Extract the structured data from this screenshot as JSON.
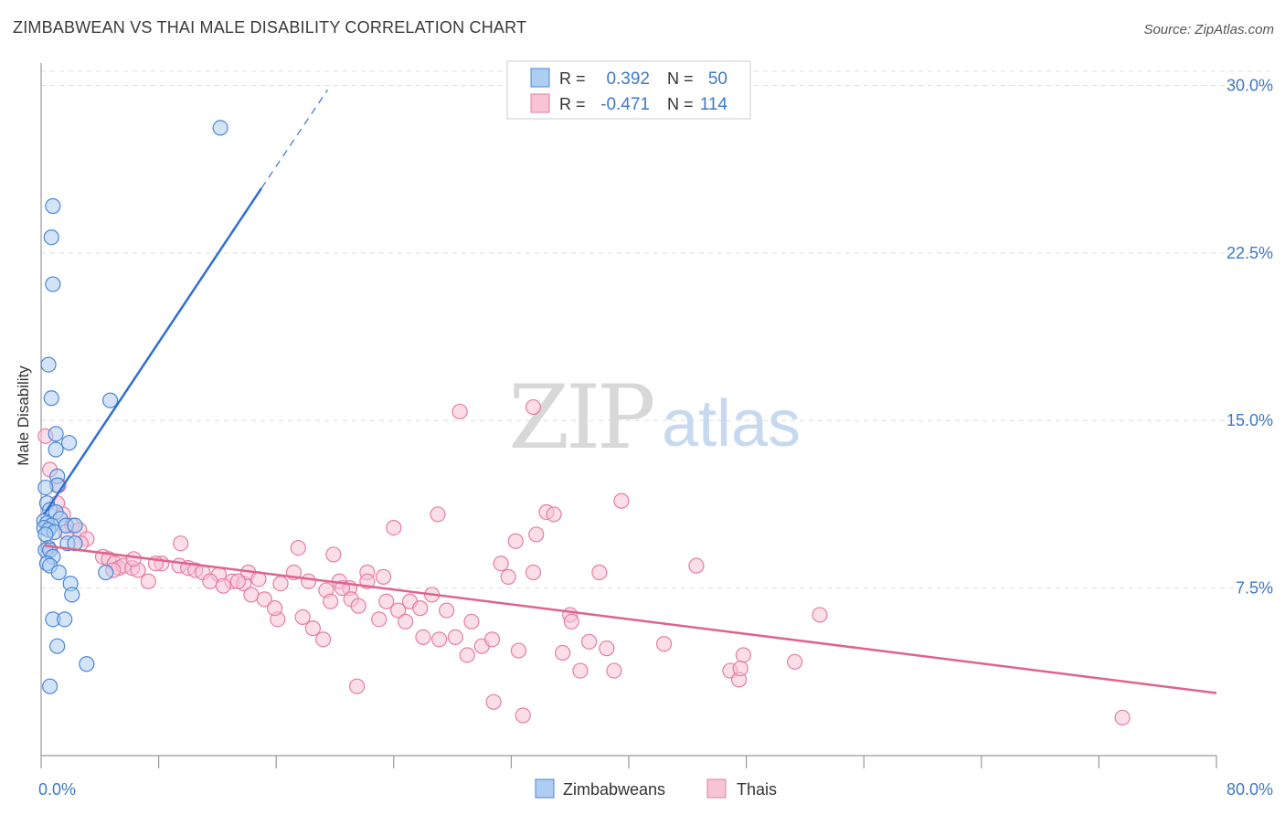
{
  "header": {
    "title": "ZIMBABWEAN VS THAI MALE DISABILITY CORRELATION CHART",
    "source": "Source: ZipAtlas.com"
  },
  "watermark": {
    "zip": "ZIP",
    "atlas": "atlas"
  },
  "colors": {
    "blue": "#4a86d4",
    "blue_fill": "#aecdf3",
    "blue_line": "#2f6fd0",
    "pink": "#e37ea3",
    "pink_fill": "#f7c3d5",
    "pink_line": "#e0628f",
    "tick_text": "#3f78c8",
    "grid": "#dddddd"
  },
  "legend_top": {
    "rows": [
      {
        "series": "Zimbabweans",
        "r_label": "R =",
        "r_value": "0.392",
        "n_label": "N =",
        "n_value": "50"
      },
      {
        "series": "Thais",
        "r_label": "R =",
        "r_value": "-0.471",
        "n_label": "N =",
        "n_value": "114"
      }
    ]
  },
  "legend_bottom": {
    "items": [
      "Zimbabweans",
      "Thais"
    ]
  },
  "chart_data": {
    "type": "scatter",
    "title": "ZIMBABWEAN VS THAI MALE DISABILITY CORRELATION CHART",
    "xlabel": "",
    "ylabel": "Male Disability",
    "xlim": [
      0,
      80
    ],
    "ylim": [
      0,
      31
    ],
    "x_tick_labels": [
      "0.0%",
      "80.0%"
    ],
    "y_ticks": [
      7.5,
      15.0,
      22.5,
      30.0
    ],
    "y_tick_labels": [
      "7.5%",
      "15.0%",
      "22.5%",
      "30.0%"
    ],
    "grid": true,
    "series": [
      {
        "name": "Zimbabweans",
        "r": 0.392,
        "n": 50,
        "trend": {
          "x_start": 0.2,
          "y_start": 10.8,
          "x_solid_end": 15.0,
          "y_solid_end": 25.4,
          "x_dash_end": 19.5,
          "y_dash_end": 29.8
        },
        "points": [
          [
            12.2,
            28.1
          ],
          [
            0.8,
            24.6
          ],
          [
            0.7,
            23.2
          ],
          [
            0.8,
            21.1
          ],
          [
            0.5,
            17.5
          ],
          [
            0.7,
            16.0
          ],
          [
            4.7,
            15.9
          ],
          [
            1.0,
            14.4
          ],
          [
            1.9,
            14.0
          ],
          [
            1.0,
            13.7
          ],
          [
            1.1,
            12.5
          ],
          [
            1.1,
            12.1
          ],
          [
            0.3,
            12.0
          ],
          [
            0.4,
            11.3
          ],
          [
            0.6,
            11.0
          ],
          [
            1.0,
            10.9
          ],
          [
            1.3,
            10.6
          ],
          [
            0.2,
            10.5
          ],
          [
            0.4,
            10.4
          ],
          [
            0.7,
            10.3
          ],
          [
            1.7,
            10.3
          ],
          [
            2.3,
            10.3
          ],
          [
            0.2,
            10.2
          ],
          [
            0.5,
            10.1
          ],
          [
            0.9,
            10.0
          ],
          [
            0.3,
            9.9
          ],
          [
            1.8,
            9.5
          ],
          [
            2.3,
            9.5
          ],
          [
            0.5,
            9.3
          ],
          [
            0.3,
            9.2
          ],
          [
            0.6,
            9.2
          ],
          [
            0.8,
            8.9
          ],
          [
            0.4,
            8.6
          ],
          [
            0.6,
            8.5
          ],
          [
            1.2,
            8.2
          ],
          [
            4.4,
            8.2
          ],
          [
            2.0,
            7.7
          ],
          [
            2.1,
            7.2
          ],
          [
            0.8,
            6.1
          ],
          [
            1.6,
            6.1
          ],
          [
            1.1,
            4.9
          ],
          [
            3.1,
            4.1
          ],
          [
            0.6,
            3.1
          ]
        ]
      },
      {
        "name": "Thais",
        "r": -0.471,
        "n": 114,
        "trend": {
          "x_start": 0.2,
          "y_start": 9.4,
          "x_end": 80.0,
          "y_end": 2.8
        },
        "points": [
          [
            0.3,
            14.3
          ],
          [
            0.6,
            12.8
          ],
          [
            1.2,
            12.1
          ],
          [
            1.1,
            11.3
          ],
          [
            1.5,
            10.8
          ],
          [
            2.1,
            10.3
          ],
          [
            2.6,
            10.1
          ],
          [
            1.7,
            10.0
          ],
          [
            3.1,
            9.7
          ],
          [
            2.7,
            9.5
          ],
          [
            4.2,
            8.9
          ],
          [
            4.6,
            8.8
          ],
          [
            5.0,
            8.6
          ],
          [
            5.3,
            8.4
          ],
          [
            5.6,
            8.5
          ],
          [
            6.2,
            8.4
          ],
          [
            6.6,
            8.3
          ],
          [
            4.9,
            8.3
          ],
          [
            8.2,
            8.6
          ],
          [
            9.4,
            8.5
          ],
          [
            10.0,
            8.4
          ],
          [
            10.5,
            8.3
          ],
          [
            11.0,
            8.2
          ],
          [
            12.1,
            8.1
          ],
          [
            13.0,
            7.8
          ],
          [
            13.8,
            7.7
          ],
          [
            14.1,
            8.2
          ],
          [
            14.8,
            7.9
          ],
          [
            16.3,
            7.7
          ],
          [
            17.2,
            8.2
          ],
          [
            18.2,
            7.8
          ],
          [
            19.4,
            7.4
          ],
          [
            20.3,
            7.8
          ],
          [
            21.0,
            7.5
          ],
          [
            22.2,
            8.2
          ],
          [
            23.3,
            8.0
          ],
          [
            7.3,
            7.8
          ],
          [
            6.3,
            8.8
          ],
          [
            7.8,
            8.6
          ],
          [
            9.5,
            9.5
          ],
          [
            11.5,
            7.8
          ],
          [
            12.4,
            7.6
          ],
          [
            13.4,
            7.8
          ],
          [
            14.3,
            7.2
          ],
          [
            15.2,
            7.0
          ],
          [
            16.1,
            6.1
          ],
          [
            15.9,
            6.6
          ],
          [
            17.5,
            9.3
          ],
          [
            17.8,
            6.2
          ],
          [
            18.5,
            5.7
          ],
          [
            19.2,
            5.2
          ],
          [
            19.7,
            6.9
          ],
          [
            19.9,
            9.0
          ],
          [
            20.5,
            7.5
          ],
          [
            21.1,
            7.0
          ],
          [
            21.6,
            6.7
          ],
          [
            22.2,
            7.8
          ],
          [
            23.0,
            6.1
          ],
          [
            23.5,
            6.9
          ],
          [
            24.3,
            6.5
          ],
          [
            24.8,
            6.0
          ],
          [
            25.1,
            6.9
          ],
          [
            25.8,
            6.6
          ],
          [
            26.0,
            5.3
          ],
          [
            26.6,
            7.2
          ],
          [
            27.1,
            5.2
          ],
          [
            27.6,
            6.5
          ],
          [
            28.2,
            5.3
          ],
          [
            29.0,
            4.5
          ],
          [
            29.3,
            6.0
          ],
          [
            30.0,
            4.9
          ],
          [
            30.7,
            5.2
          ],
          [
            31.3,
            8.6
          ],
          [
            31.8,
            8.0
          ],
          [
            32.3,
            9.6
          ],
          [
            32.5,
            4.7
          ],
          [
            33.5,
            8.2
          ],
          [
            33.7,
            9.9
          ],
          [
            34.4,
            10.9
          ],
          [
            34.9,
            10.8
          ],
          [
            35.5,
            4.6
          ],
          [
            36.0,
            6.3
          ],
          [
            36.7,
            3.8
          ],
          [
            37.3,
            5.1
          ],
          [
            38.5,
            4.8
          ],
          [
            39.0,
            3.8
          ],
          [
            38.0,
            8.2
          ],
          [
            42.4,
            5.0
          ],
          [
            44.6,
            8.5
          ],
          [
            46.9,
            3.8
          ],
          [
            47.5,
            3.4
          ],
          [
            47.8,
            4.5
          ],
          [
            47.6,
            3.9
          ],
          [
            51.3,
            4.2
          ],
          [
            53.0,
            6.3
          ],
          [
            39.5,
            11.4
          ],
          [
            27.0,
            10.8
          ],
          [
            24.0,
            10.2
          ],
          [
            30.8,
            2.4
          ],
          [
            21.5,
            3.1
          ],
          [
            36.1,
            6.0
          ],
          [
            33.5,
            15.6
          ],
          [
            28.5,
            15.4
          ],
          [
            32.8,
            1.8
          ],
          [
            73.6,
            1.7
          ]
        ]
      }
    ]
  }
}
